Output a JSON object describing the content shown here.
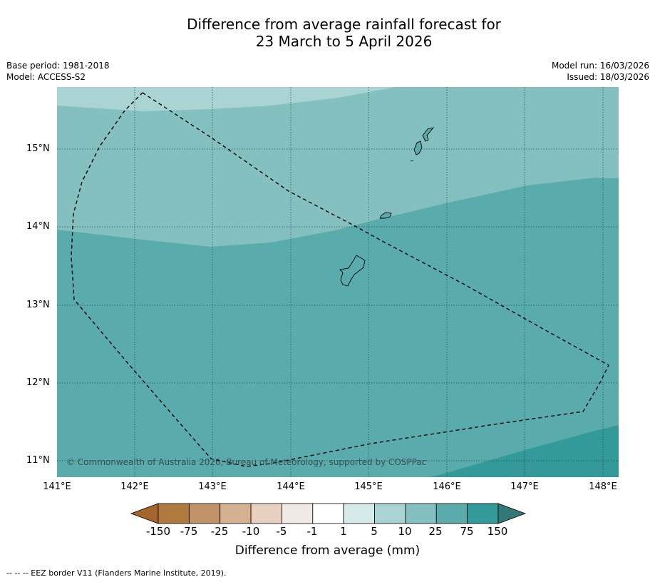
{
  "title": {
    "line1": "Difference from average rainfall forecast for",
    "line2": "23 March to 5 April 2026"
  },
  "meta": {
    "base_period": "Base period: 1981-2018",
    "model": "Model: ACCESS-S2",
    "model_run": "Model run: 16/03/2026",
    "issued": "Issued: 18/03/2026"
  },
  "map": {
    "lat_labels": [
      "15°N",
      "14°N",
      "13°N",
      "12°N",
      "11°N"
    ],
    "lon_labels": [
      "141°E",
      "142°E",
      "143°E",
      "144°E",
      "145°E",
      "146°E",
      "147°E",
      "148°E"
    ],
    "credit": "© Commonwealth of Australia 2026, Bureau of Meteorology, supported by COSPPac",
    "colors": {
      "band_5_10": "#aad4d3",
      "band_10_25": "#84c0bf",
      "band_25_75": "#5aabab",
      "band_75_150": "#339999"
    }
  },
  "colorbar": {
    "labels": [
      "-150",
      "-75",
      "-25",
      "-10",
      "-5",
      "-1",
      "1",
      "5",
      "10",
      "25",
      "75",
      "150"
    ],
    "colors": [
      "#a5652d",
      "#b07a3f",
      "#c09468",
      "#d4b190",
      "#e8d2bf",
      "#efeae6",
      "#ffffff",
      "#d5ebe9",
      "#aad4d3",
      "#84c0bf",
      "#5aabab",
      "#339999",
      "#337878"
    ],
    "title": "Difference from average (mm)"
  },
  "footnote": "--  --  -- EEZ border V11 (Flanders Marine Institute, 2019)."
}
